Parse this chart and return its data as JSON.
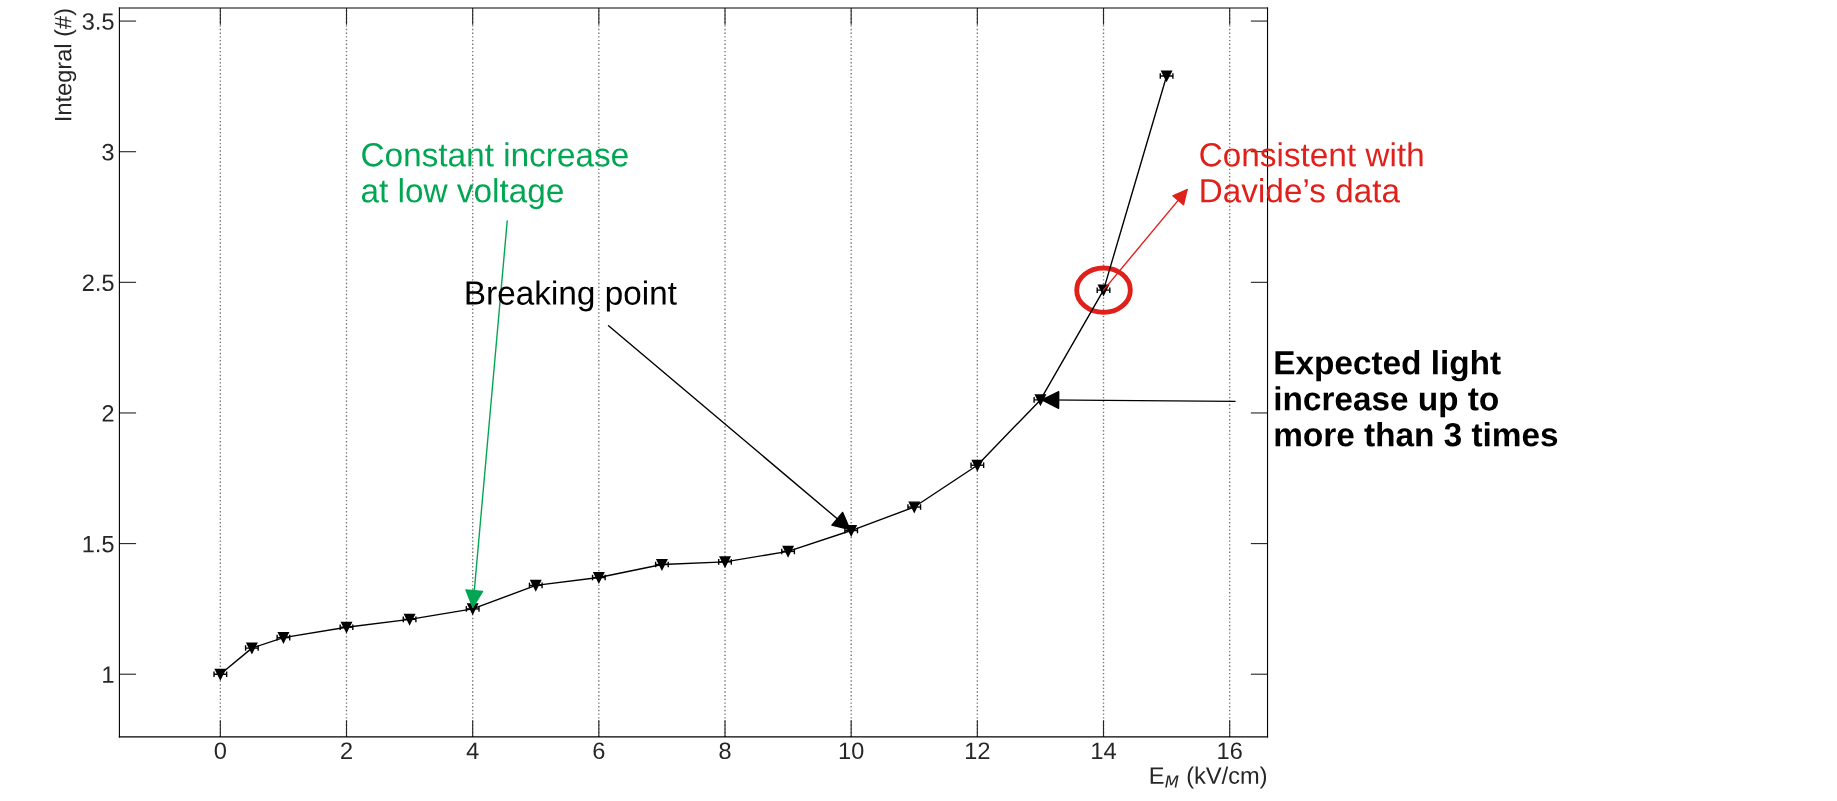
{
  "chart_data": {
    "type": "line",
    "xlabel": "E$_{M}$ (kV/cm)",
    "ylabel": "Integral (#)",
    "x": [
      0,
      0.5,
      1,
      2,
      3,
      4,
      5,
      6,
      7,
      8,
      9,
      10,
      11,
      12,
      13,
      14,
      15
    ],
    "values": [
      1.0,
      1.1,
      1.14,
      1.18,
      1.21,
      1.25,
      1.34,
      1.37,
      1.42,
      1.43,
      1.47,
      1.55,
      1.64,
      1.8,
      2.05,
      2.47,
      3.29
    ],
    "xerrors": [
      0.1,
      0.1,
      0.1,
      0.1,
      0.1,
      0.1,
      0.1,
      0.1,
      0.1,
      0.1,
      0.1,
      0.1,
      0.1,
      0.1,
      0.1,
      0.1,
      0.1
    ],
    "color": "#000000",
    "marker": "triangle",
    "line_style": "solid",
    "xlim": [
      -1.6,
      16.6
    ],
    "ylim": [
      0.76,
      3.55
    ],
    "xticks": [
      0,
      2,
      4,
      6,
      8,
      10,
      12,
      14,
      16
    ],
    "yticks": [
      1,
      1.5,
      2,
      2.5,
      3,
      3.5
    ],
    "grid": "x",
    "annotations": [
      {
        "text": "Constant increase\nat low voltage",
        "x": 4,
        "y": 1.25
      },
      {
        "text": "Breaking point",
        "x": 10,
        "y": 1.55
      },
      {
        "text": "Expected light\nincrease up to\nmore than 3 times",
        "x": 13,
        "y": 2.05
      },
      {
        "text": "Consistent with\nDavide’s data",
        "x": 14,
        "y": 2.47
      }
    ]
  }
}
